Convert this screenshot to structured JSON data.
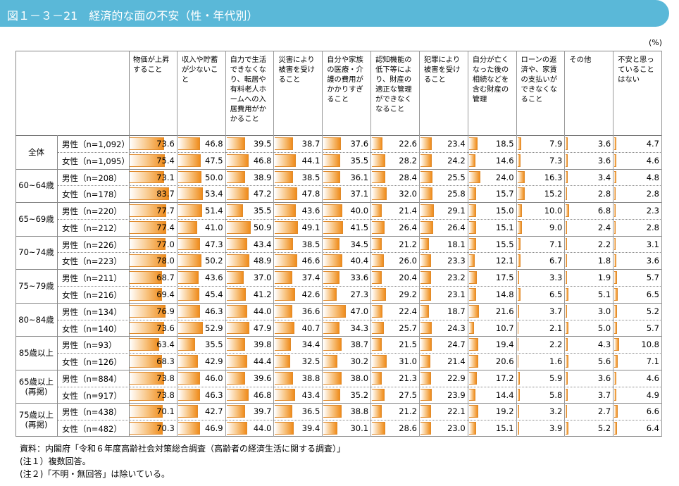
{
  "header": {
    "title": "図１－３－21　経済的な面の不安（性・年代別）",
    "unit": "(%)"
  },
  "table": {
    "columns": [
      "物価が上昇すること",
      "収入や貯蓄が少ないこと",
      "自力で生活できなくなり、転居や有料老人ホームへの入居費用がかかること",
      "災害により被害を受けること",
      "自分や家族の医療・介護の費用がかかりすぎること",
      "認知機能の低下等により、財産の適正な管理ができなくなること",
      "犯罪により被害を受けること",
      "自分が亡くなった後の相続などを含む財産の管理",
      "ローンの返済や、家賃の支払いができなくなること",
      "その他",
      "不安と思っていることはない"
    ],
    "groups": [
      {
        "label": [
          "全体"
        ],
        "rows": [
          {
            "label": "男性（n=1,092）",
            "values": [
              "73.6",
              "46.8",
              "39.5",
              "38.7",
              "37.6",
              "22.6",
              "23.4",
              "18.5",
              "7.9",
              "3.6",
              "4.7"
            ]
          },
          {
            "label": "女性（n=1,095）",
            "values": [
              "75.4",
              "47.5",
              "46.8",
              "44.1",
              "35.5",
              "28.2",
              "24.2",
              "14.6",
              "7.3",
              "3.6",
              "4.6"
            ]
          }
        ]
      },
      {
        "label": [
          "60~64歳"
        ],
        "rows": [
          {
            "label": "男性（n=208）",
            "values": [
              "73.1",
              "50.0",
              "38.9",
              "38.5",
              "36.1",
              "28.4",
              "25.5",
              "24.0",
              "16.3",
              "3.4",
              "4.8"
            ]
          },
          {
            "label": "女性（n=178）",
            "values": [
              "83.7",
              "53.4",
              "47.2",
              "47.8",
              "37.1",
              "32.0",
              "25.8",
              "15.7",
              "15.2",
              "2.8",
              "2.8"
            ]
          }
        ]
      },
      {
        "label": [
          "65~69歳"
        ],
        "rows": [
          {
            "label": "男性（n=220）",
            "values": [
              "77.7",
              "51.4",
              "35.5",
              "43.6",
              "40.0",
              "21.4",
              "29.1",
              "15.0",
              "10.0",
              "6.8",
              "2.3"
            ]
          },
          {
            "label": "女性（n=212）",
            "values": [
              "77.4",
              "41.0",
              "50.9",
              "49.1",
              "41.5",
              "26.4",
              "26.4",
              "15.1",
              "9.0",
              "2.4",
              "2.8"
            ]
          }
        ]
      },
      {
        "label": [
          "70~74歳"
        ],
        "rows": [
          {
            "label": "男性（n=226）",
            "values": [
              "77.0",
              "47.3",
              "43.4",
              "38.5",
              "34.5",
              "21.2",
              "18.1",
              "15.5",
              "7.1",
              "2.2",
              "3.1"
            ]
          },
          {
            "label": "女性（n=223）",
            "values": [
              "78.0",
              "50.2",
              "48.9",
              "46.6",
              "40.4",
              "26.0",
              "23.3",
              "12.1",
              "6.7",
              "1.8",
              "3.6"
            ]
          }
        ]
      },
      {
        "label": [
          "75~79歳"
        ],
        "rows": [
          {
            "label": "男性（n=211）",
            "values": [
              "68.7",
              "43.6",
              "37.0",
              "37.4",
              "33.6",
              "20.4",
              "23.2",
              "17.5",
              "3.3",
              "1.9",
              "5.7"
            ]
          },
          {
            "label": "女性（n=216）",
            "values": [
              "69.4",
              "45.4",
              "41.2",
              "42.6",
              "27.3",
              "29.2",
              "23.1",
              "14.8",
              "6.5",
              "5.1",
              "6.5"
            ]
          }
        ]
      },
      {
        "label": [
          "80~84歳"
        ],
        "rows": [
          {
            "label": "男性（n=134）",
            "values": [
              "76.9",
              "46.3",
              "44.0",
              "36.6",
              "47.0",
              "22.4",
              "18.7",
              "21.6",
              "3.7",
              "3.0",
              "5.2"
            ]
          },
          {
            "label": "女性（n=140）",
            "values": [
              "73.6",
              "52.9",
              "47.9",
              "40.7",
              "34.3",
              "25.7",
              "24.3",
              "10.7",
              "2.1",
              "5.0",
              "5.7"
            ]
          }
        ]
      },
      {
        "label": [
          "85歳以上"
        ],
        "rows": [
          {
            "label": "男性（n=93）",
            "values": [
              "63.4",
              "35.5",
              "39.8",
              "34.4",
              "38.7",
              "21.5",
              "24.7",
              "19.4",
              "2.2",
              "4.3",
              "10.8"
            ]
          },
          {
            "label": "女性（n=126）",
            "values": [
              "68.3",
              "42.9",
              "44.4",
              "32.5",
              "30.2",
              "31.0",
              "21.4",
              "20.6",
              "1.6",
              "5.6",
              "7.1"
            ]
          }
        ]
      },
      {
        "label": [
          "65歳以上",
          "(再掲)"
        ],
        "rows": [
          {
            "label": "男性（n=884）",
            "values": [
              "73.8",
              "46.0",
              "39.6",
              "38.8",
              "38.0",
              "21.3",
              "22.9",
              "17.2",
              "5.9",
              "3.6",
              "4.6"
            ]
          },
          {
            "label": "女性（n=917）",
            "values": [
              "73.8",
              "46.3",
              "46.8",
              "43.4",
              "35.2",
              "27.5",
              "23.9",
              "14.4",
              "5.8",
              "3.7",
              "4.9"
            ]
          }
        ]
      },
      {
        "label": [
          "75歳以上",
          "(再掲)"
        ],
        "rows": [
          {
            "label": "男性（n=438）",
            "values": [
              "70.1",
              "42.7",
              "39.7",
              "36.5",
              "38.8",
              "21.2",
              "22.1",
              "19.2",
              "3.2",
              "2.7",
              "6.6"
            ]
          },
          {
            "label": "女性（n=482）",
            "values": [
              "70.3",
              "46.9",
              "44.0",
              "39.4",
              "30.1",
              "28.6",
              "23.0",
              "15.1",
              "3.9",
              "5.2",
              "6.4"
            ]
          }
        ]
      }
    ]
  },
  "notes": [
    "資料：内閣府「令和６年度高齢社会対策総合調査（高齢者の経済生活に関する調査）」",
    "(注１）複数回答。",
    "(注２)「不明・無回答」は除いている。"
  ]
}
